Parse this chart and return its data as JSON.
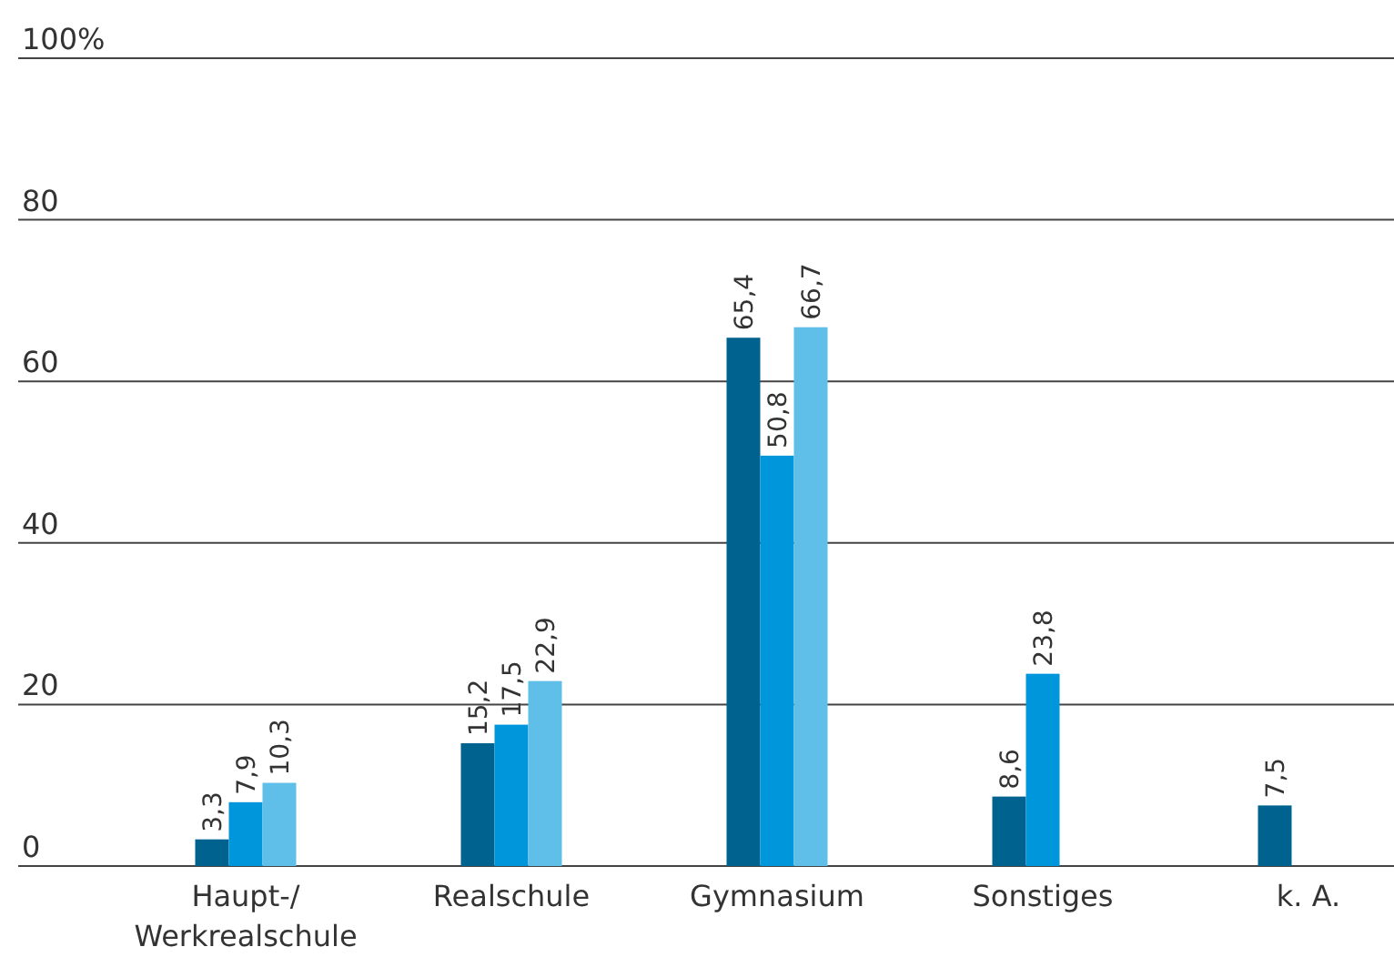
{
  "chart_data": {
    "type": "bar",
    "categories": [
      "Haupt-/\nWerkrealschule",
      "Realschule",
      "Gymnasium",
      "Sonstiges",
      "k. A."
    ],
    "series": [
      {
        "color": "#00628f",
        "values": [
          3.3,
          15.2,
          65.4,
          8.6,
          7.5
        ],
        "value_labels": [
          "3,3",
          "15,2",
          "65,4",
          "8,6",
          "7,5"
        ]
      },
      {
        "color": "#0096db",
        "values": [
          7.9,
          17.5,
          50.8,
          23.8,
          null
        ],
        "value_labels": [
          "7,9",
          "17,5",
          "50,8",
          "23,8",
          null
        ]
      },
      {
        "color": "#5fbfe8",
        "values": [
          10.3,
          22.9,
          66.7,
          null,
          null
        ],
        "value_labels": [
          "10,3",
          "22,9",
          "66,7",
          null,
          null
        ]
      }
    ],
    "ylim": [
      0,
      100
    ],
    "yticks": [
      0,
      20,
      40,
      60,
      80,
      {
        "value": 100,
        "label": "100%"
      }
    ],
    "grid": "y"
  }
}
